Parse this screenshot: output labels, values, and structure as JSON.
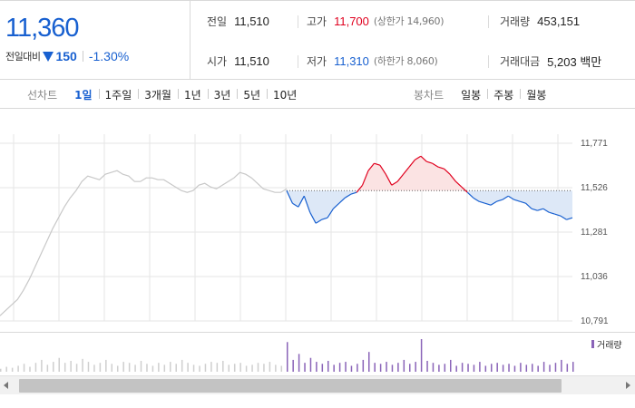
{
  "summary": {
    "current_price": "11,360",
    "change_label": "전일대비",
    "change_direction_icon": "down-triangle-icon",
    "change_abs": "150",
    "change_pct": "-1.30%",
    "prev_close": {
      "label": "전일",
      "value": "11,510"
    },
    "high": {
      "label": "고가",
      "value": "11,700",
      "sub": "(상한가 14,960)"
    },
    "volume": {
      "label": "거래량",
      "value": "453,151"
    },
    "open": {
      "label": "시가",
      "value": "11,510"
    },
    "low": {
      "label": "저가",
      "value": "11,310",
      "sub": "(하한가 8,060)"
    },
    "trade_value": {
      "label": "거래대금",
      "value": "5,203 백만"
    },
    "colors": {
      "up": "#e0001e",
      "down": "#1860d0"
    }
  },
  "toolbar": {
    "line_chart_label": "선차트",
    "line_periods": [
      "1일",
      "1주일",
      "3개월",
      "1년",
      "3년",
      "5년",
      "10년"
    ],
    "line_active_index": 0,
    "candle_chart_label": "봉차트",
    "candle_periods": [
      "일봉",
      "주봉",
      "월봉"
    ]
  },
  "chart_data": {
    "type": "line",
    "title": "",
    "xlabel": "",
    "ylabel": "",
    "ylim": [
      10791,
      11771
    ],
    "y_ticks": [
      "11,771",
      "11,526",
      "11,281",
      "11,036",
      "10,791"
    ],
    "reference_price": 11510,
    "colors": {
      "prior_period": "#c8c8c8",
      "above_reference": "#e0001e",
      "below_reference": "#1860d0",
      "volume": "#8a64b8",
      "volume_prior": "#cfcfcf",
      "grid": "#e6e6e6"
    },
    "series": [
      {
        "period": "prior",
        "values": [
          10820,
          10850,
          10880,
          10910,
          10960,
          11020,
          11090,
          11160,
          11230,
          11300,
          11360,
          11420,
          11470,
          11510,
          11560,
          11590,
          11580,
          11570,
          11600,
          11610,
          11620,
          11600,
          11590,
          11560,
          11560,
          11580,
          11580,
          11570,
          11570,
          11550,
          11530,
          11510,
          11500,
          11510,
          11540,
          11550,
          11530,
          11520,
          11540,
          11560,
          11580,
          11610,
          11600,
          11580,
          11550,
          11520,
          11510,
          11500,
          11500,
          11520
        ]
      },
      {
        "period": "today",
        "values": [
          11510,
          11440,
          11420,
          11480,
          11390,
          11330,
          11350,
          11360,
          11410,
          11440,
          11470,
          11490,
          11500,
          11540,
          11620,
          11660,
          11650,
          11600,
          11540,
          11560,
          11600,
          11640,
          11680,
          11700,
          11670,
          11660,
          11640,
          11630,
          11600,
          11560,
          11530,
          11500,
          11470,
          11450,
          11440,
          11430,
          11450,
          11460,
          11480,
          11460,
          11450,
          11440,
          11410,
          11400,
          11410,
          11390,
          11380,
          11370,
          11350,
          11360
        ]
      }
    ],
    "volume_label": "거래량",
    "volume": {
      "prior": [
        3,
        5,
        4,
        6,
        8,
        5,
        9,
        12,
        7,
        10,
        14,
        9,
        11,
        8,
        13,
        10,
        7,
        9,
        12,
        8,
        6,
        10,
        9,
        7,
        11,
        8,
        6,
        9,
        7,
        10,
        8,
        12,
        9,
        7,
        6,
        8,
        10,
        9,
        11,
        7,
        8,
        9,
        6,
        7,
        9,
        8,
        10,
        7,
        6,
        8
      ],
      "today": [
        30,
        12,
        18,
        9,
        14,
        10,
        8,
        11,
        7,
        9,
        10,
        6,
        8,
        12,
        20,
        9,
        8,
        10,
        7,
        9,
        12,
        8,
        10,
        33,
        11,
        9,
        7,
        8,
        12,
        6,
        9,
        8,
        7,
        10,
        6,
        8,
        9,
        7,
        8,
        6,
        9,
        7,
        8,
        6,
        10,
        7,
        9,
        12,
        8,
        10
      ]
    }
  },
  "scrollbar": {
    "left_icon": "arrow-left-icon",
    "right_icon": "arrow-right-icon"
  }
}
